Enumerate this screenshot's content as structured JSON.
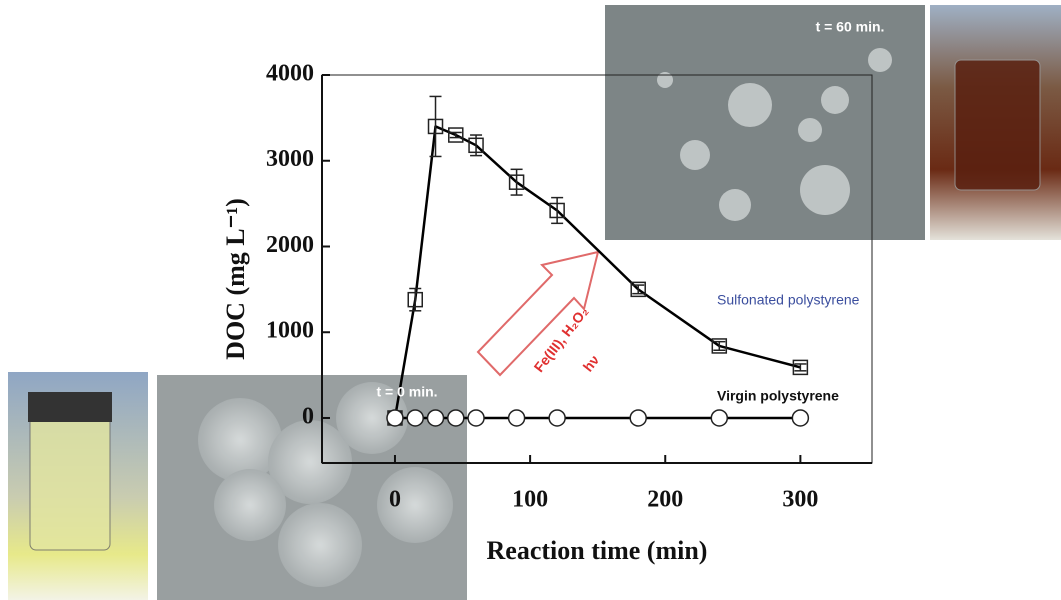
{
  "chart_data": {
    "type": "line",
    "x_label": "Reaction time (min)",
    "y_label": "DOC (mg L⁻¹)",
    "x": [
      0,
      15,
      30,
      45,
      60,
      90,
      120,
      180,
      240,
      300
    ],
    "series": [
      {
        "name": "Sulfonated polystyrene",
        "color": "#000000",
        "marker": "square",
        "values": [
          0,
          1380,
          3400,
          3300,
          3180,
          2750,
          2420,
          1500,
          840,
          590
        ],
        "errors": [
          0,
          130,
          350,
          30,
          120,
          150,
          150,
          50,
          50,
          40
        ]
      },
      {
        "name": "Virgin polystyrene",
        "color": "#000000",
        "marker": "circle",
        "values": [
          0,
          0,
          0,
          0,
          0,
          0,
          0,
          0,
          0,
          0
        ]
      }
    ],
    "xlim": [
      -54,
      353
    ],
    "ylim": [
      -525,
      4000
    ],
    "xticks": [
      0,
      100,
      200,
      300
    ],
    "yticks": [
      0,
      1000,
      2000,
      3000,
      4000
    ],
    "annotations": [
      "t = 60 min.",
      "t = 0 min.",
      "Fe(III), H₂O₂",
      "hν"
    ]
  }
}
